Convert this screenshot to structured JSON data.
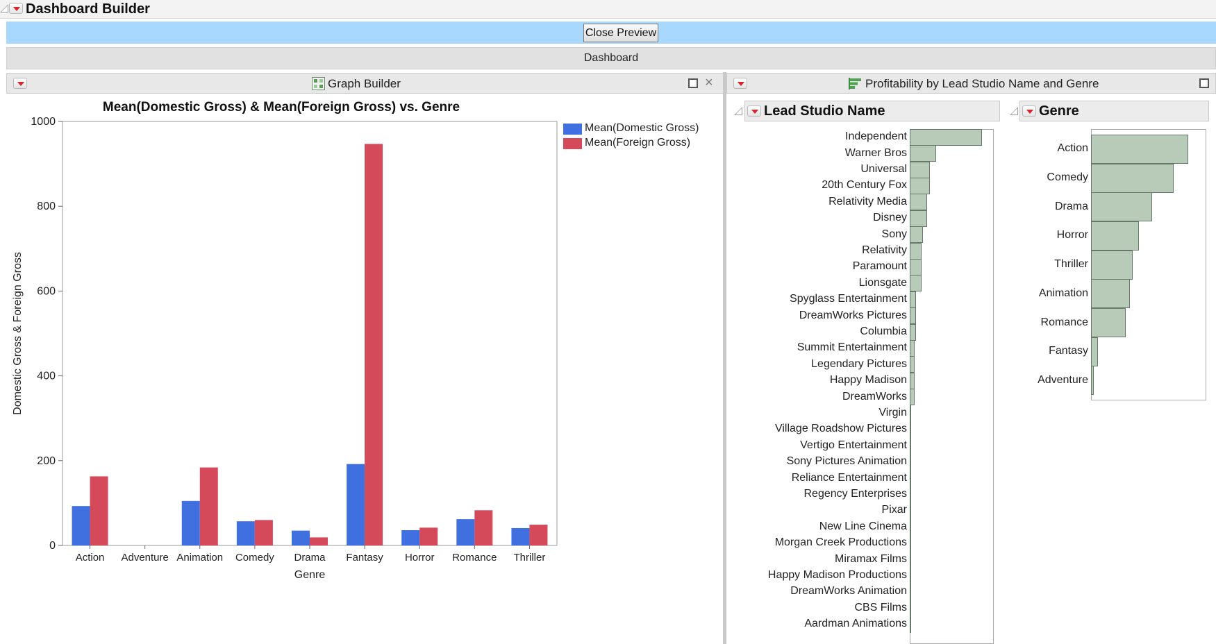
{
  "window": {
    "title": "Dashboard Builder",
    "close_preview_label": "Close Preview",
    "dashboard_label": "Dashboard"
  },
  "graph_builder": {
    "title": "Graph Builder",
    "icons": [
      "graph-builder-icon",
      "maximize-icon",
      "close-icon"
    ]
  },
  "chart_data": {
    "type": "bar",
    "title": "Mean(Domestic Gross) & Mean(Foreign Gross) vs. Genre",
    "xlabel": "Genre",
    "ylabel": "Domestic Gross & Foreign Gross",
    "ylim": [
      0,
      1000
    ],
    "yticks": [
      0,
      200,
      400,
      600,
      800,
      1000
    ],
    "categories": [
      "Action",
      "Adventure",
      "Animation",
      "Comedy",
      "Drama",
      "Fantasy",
      "Horror",
      "Romance",
      "Thriller"
    ],
    "series": [
      {
        "name": "Mean(Domestic Gross)",
        "color": "#4070e0",
        "values": [
          93,
          0,
          105,
          57,
          35,
          192,
          36,
          62,
          41
        ]
      },
      {
        "name": "Mean(Foreign Gross)",
        "color": "#d44a5a",
        "values": [
          163,
          0,
          184,
          60,
          19,
          947,
          42,
          83,
          49
        ]
      }
    ],
    "legend": "right",
    "grid": false
  },
  "profitability": {
    "title": "Profitability by Lead Studio Name and Genre",
    "studio_header": "Lead Studio Name",
    "genre_header": "Genre",
    "studios": [
      {
        "name": "Independent",
        "value": 100
      },
      {
        "name": "Warner Bros",
        "value": 37
      },
      {
        "name": "Universal",
        "value": 28
      },
      {
        "name": "20th Century Fox",
        "value": 28
      },
      {
        "name": "Relativity Media",
        "value": 24
      },
      {
        "name": "Disney",
        "value": 24
      },
      {
        "name": "Sony",
        "value": 18
      },
      {
        "name": "Relativity",
        "value": 16
      },
      {
        "name": "Paramount",
        "value": 16
      },
      {
        "name": "Lionsgate",
        "value": 16
      },
      {
        "name": "Spyglass Entertainment",
        "value": 9
      },
      {
        "name": "DreamWorks Pictures",
        "value": 9
      },
      {
        "name": "Columbia",
        "value": 9
      },
      {
        "name": "Summit Entertainment",
        "value": 7
      },
      {
        "name": "Legendary Pictures",
        "value": 7
      },
      {
        "name": "Happy Madison",
        "value": 7
      },
      {
        "name": "DreamWorks",
        "value": 7
      },
      {
        "name": "Virgin",
        "value": 2
      },
      {
        "name": "Village Roadshow Pictures",
        "value": 2
      },
      {
        "name": "Vertigo Entertainment",
        "value": 2
      },
      {
        "name": "Sony Pictures Animation",
        "value": 2
      },
      {
        "name": "Reliance Entertainment",
        "value": 2
      },
      {
        "name": "Regency Enterprises",
        "value": 2
      },
      {
        "name": "Pixar",
        "value": 2
      },
      {
        "name": "New Line Cinema",
        "value": 2
      },
      {
        "name": "Morgan Creek Productions",
        "value": 2
      },
      {
        "name": "Miramax Films",
        "value": 2
      },
      {
        "name": "Happy Madison Productions",
        "value": 2
      },
      {
        "name": "DreamWorks Animation",
        "value": 2
      },
      {
        "name": "CBS Films",
        "value": 2
      },
      {
        "name": "Aardman Animations",
        "value": 2
      }
    ],
    "genres": [
      {
        "name": "Action",
        "value": 100
      },
      {
        "name": "Comedy",
        "value": 85
      },
      {
        "name": "Drama",
        "value": 63
      },
      {
        "name": "Horror",
        "value": 49
      },
      {
        "name": "Thriller",
        "value": 43
      },
      {
        "name": "Animation",
        "value": 40
      },
      {
        "name": "Romance",
        "value": 36
      },
      {
        "name": "Fantasy",
        "value": 7
      },
      {
        "name": "Adventure",
        "value": 3
      }
    ]
  }
}
